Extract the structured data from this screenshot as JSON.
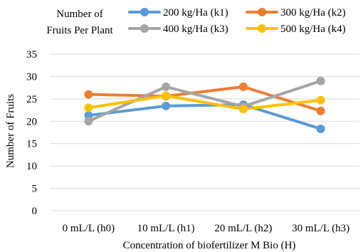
{
  "chart_data": {
    "type": "line",
    "legend_title": [
      "Number of",
      "Fruits Per Plant"
    ],
    "categories": [
      "0 mL/L (h0)",
      "10 mL/L (h1)",
      "20 mL/L (h2)",
      "30 mL/L (h3)"
    ],
    "xlabel": "Concentration of biofertilizer M Bio (H)",
    "ylabel": "Number of  Fruits",
    "ylim": [
      0,
      35
    ],
    "yticks": [
      0,
      5,
      10,
      15,
      20,
      25,
      30,
      35
    ],
    "grid": true,
    "legend_position": "top",
    "series": [
      {
        "name": "200 kg/Ha (k1)",
        "color": "#5b9bd5",
        "values": [
          21.3,
          23.4,
          23.7,
          18.3
        ]
      },
      {
        "name": "300 kg/Ha (k2)",
        "color": "#ed7d31",
        "values": [
          26.0,
          25.6,
          27.7,
          22.3
        ]
      },
      {
        "name": "400 kg/Ha (k3)",
        "color": "#a5a5a5",
        "values": [
          20.0,
          27.7,
          23.3,
          29.0
        ]
      },
      {
        "name": "500 kg/Ha (k4)",
        "color": "#ffc000",
        "values": [
          23.0,
          25.7,
          22.7,
          24.7
        ]
      }
    ]
  }
}
